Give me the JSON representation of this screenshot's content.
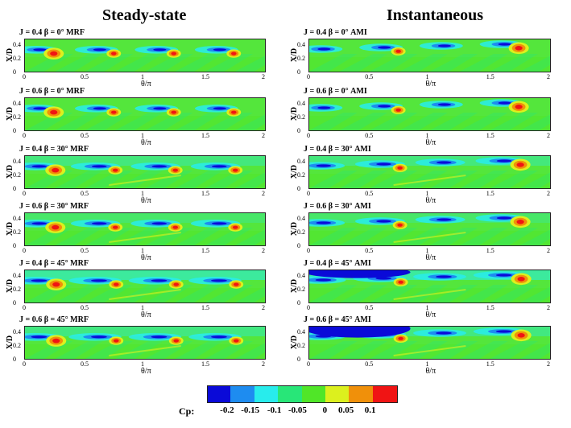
{
  "chart_data": {
    "type": "heatmap",
    "quantity": "Cp",
    "x_axis": {
      "label": "θ/π",
      "ticks": [
        "0",
        "0.5",
        "1",
        "1.5",
        "2"
      ],
      "range": [
        0,
        2
      ]
    },
    "y_axis": {
      "label": "X/D",
      "ticks": [
        "0",
        "0.2",
        "0.4"
      ],
      "range": [
        0,
        0.5
      ]
    },
    "columns": [
      {
        "title": "Steady-state",
        "panels": [
          {
            "label": "J = 0.4 β = 0° MRF",
            "J": 0.4,
            "beta": 0
          },
          {
            "label": "J = 0.6 β = 0° MRF",
            "J": 0.6,
            "beta": 0
          },
          {
            "label": "J = 0.4 β = 30° MRF",
            "J": 0.4,
            "beta": 30
          },
          {
            "label": "J = 0.6 β = 30° MRF",
            "J": 0.6,
            "beta": 30
          },
          {
            "label": "J = 0.4 β = 45° MRF",
            "J": 0.4,
            "beta": 45
          },
          {
            "label": "J = 0.6 β = 45° MRF",
            "J": 0.6,
            "beta": 45
          }
        ]
      },
      {
        "title": "Instantaneous",
        "panels": [
          {
            "label": "J = 0.4 β = 0° AMI",
            "J": 0.4,
            "beta": 0
          },
          {
            "label": "J = 0.6 β = 0° AMI",
            "J": 0.6,
            "beta": 0
          },
          {
            "label": "J = 0.4 β = 30° AMI",
            "J": 0.4,
            "beta": 30
          },
          {
            "label": "J = 0.6 β = 30° AMI",
            "J": 0.6,
            "beta": 30
          },
          {
            "label": "J = 0.4 β = 45° AMI",
            "J": 0.4,
            "beta": 45
          },
          {
            "label": "J = 0.6 β = 45° AMI",
            "J": 0.6,
            "beta": 45
          }
        ]
      }
    ],
    "colorbar": {
      "title": "Cp:",
      "ticks": [
        "-0.2",
        "-0.15",
        "-0.1",
        "-0.05",
        "0",
        "0.05",
        "0.1"
      ],
      "colors": [
        "#0a0ad8",
        "#1e8cf0",
        "#28ecec",
        "#28e678",
        "#50e628",
        "#dcf01e",
        "#f0900a",
        "#f01414"
      ]
    },
    "colors": {
      "background": "#54e63c"
    }
  }
}
